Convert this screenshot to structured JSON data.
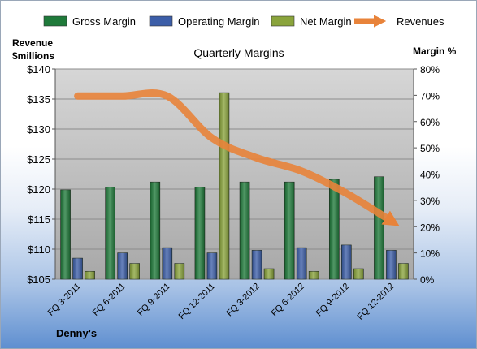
{
  "chart_data": {
    "type": "bar",
    "title": "Quarterly Margins",
    "left_axis_title": [
      "Revenue",
      "$millions"
    ],
    "right_axis_title": "Margin %",
    "categories": [
      "FQ 3-2011",
      "FQ 6-2011",
      "FQ 9-2011",
      "FQ 12-2011",
      "FQ 3-2012",
      "FQ 6-2012",
      "FQ 9-2012",
      "FQ 12-2012"
    ],
    "series": [
      {
        "name": "Gross Margin",
        "type": "bar",
        "axis": "right",
        "color": "#1f7a3a",
        "values": [
          34,
          35,
          37,
          35,
          37,
          37,
          38,
          39
        ]
      },
      {
        "name": "Operating Margin",
        "type": "bar",
        "axis": "right",
        "color": "#3c5ea8",
        "values": [
          8,
          10,
          12,
          10,
          11,
          12,
          13,
          11
        ]
      },
      {
        "name": "Net Margin",
        "type": "bar",
        "axis": "right",
        "color": "#8aa43c",
        "values": [
          3,
          6,
          6,
          71,
          4,
          3,
          4,
          6
        ]
      },
      {
        "name": "Revenues",
        "type": "line",
        "axis": "left",
        "color": "#e8833a",
        "values": [
          135.5,
          135.5,
          135.5,
          128.5,
          125.2,
          123.0,
          119.3,
          114.7
        ]
      }
    ],
    "left_axis": {
      "min": 105,
      "max": 140,
      "step": 5,
      "tick_labels": [
        "$105",
        "$110",
        "$115",
        "$120",
        "$125",
        "$130",
        "$135",
        "$140"
      ]
    },
    "right_axis": {
      "min": 0,
      "max": 80,
      "step": 10,
      "tick_labels": [
        "0%",
        "10%",
        "20%",
        "30%",
        "40%",
        "50%",
        "60%",
        "70%",
        "80%"
      ]
    },
    "legend_position": "top",
    "grid": true,
    "source_label": "Denny's"
  }
}
